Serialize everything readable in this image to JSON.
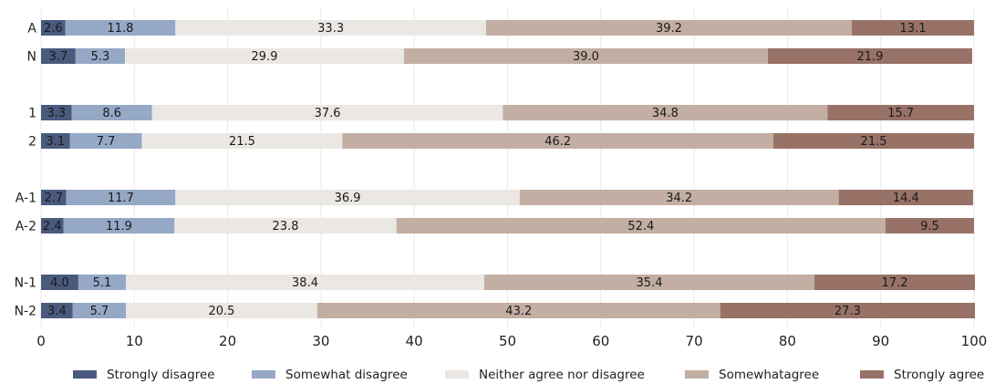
{
  "chart_data": {
    "type": "bar",
    "orientation": "horizontal",
    "stacked": true,
    "xlim": [
      0,
      100
    ],
    "xticks": [
      0,
      10,
      20,
      30,
      40,
      50,
      60,
      70,
      80,
      90,
      100
    ],
    "grid": "vertical",
    "legend_position": "bottom",
    "groups": [
      [
        "A",
        "N"
      ],
      [
        "1",
        "2"
      ],
      [
        "A-1",
        "A-2"
      ],
      [
        "N-1",
        "N-2"
      ]
    ],
    "categories": [
      "A",
      "N",
      "1",
      "2",
      "A-1",
      "A-2",
      "N-1",
      "N-2"
    ],
    "series": [
      {
        "name": "Strongly disagree",
        "color": "#4a5a7e",
        "values": [
          2.6,
          3.7,
          3.3,
          3.1,
          2.7,
          2.4,
          4.0,
          3.4
        ]
      },
      {
        "name": "Somewhat disagree",
        "color": "#95a8c6",
        "values": [
          11.8,
          5.3,
          8.6,
          7.7,
          11.7,
          11.9,
          5.1,
          5.7
        ]
      },
      {
        "name": "Neither agree nor disagree",
        "color": "#ebe7e3",
        "values": [
          33.3,
          29.9,
          37.6,
          21.5,
          36.9,
          23.8,
          38.4,
          20.5
        ]
      },
      {
        "name": "Somewhatagree",
        "color": "#c2aea2",
        "values": [
          39.2,
          39.0,
          34.8,
          46.2,
          34.2,
          52.4,
          35.4,
          43.2
        ]
      },
      {
        "name": "Strongly agree",
        "color": "#987266",
        "values": [
          13.1,
          21.9,
          15.7,
          21.5,
          14.4,
          9.5,
          17.2,
          27.3
        ]
      }
    ],
    "title": "",
    "xlabel": "",
    "ylabel": ""
  }
}
